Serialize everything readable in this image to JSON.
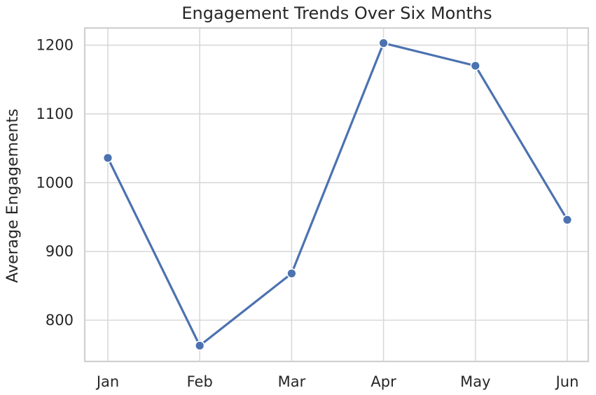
{
  "chart_data": {
    "type": "line",
    "title": "Engagement Trends Over Six Months",
    "xlabel": "",
    "ylabel": "Average Engagements",
    "categories": [
      "Jan",
      "Feb",
      "Mar",
      "Apr",
      "May",
      "Jun"
    ],
    "series": [
      {
        "values": [
          1036,
          763,
          868,
          1203,
          1170,
          946
        ]
      }
    ],
    "ylim": [
      740,
      1225
    ],
    "yticks": [
      800,
      900,
      1000,
      1100,
      1200
    ],
    "grid": true,
    "legend": "none",
    "colors": {
      "line": "#4c72b0",
      "marker": "#4c72b0",
      "marker_edge": "#ffffff",
      "grid": "#d9d9d9",
      "border": "#d0d0d0"
    }
  }
}
